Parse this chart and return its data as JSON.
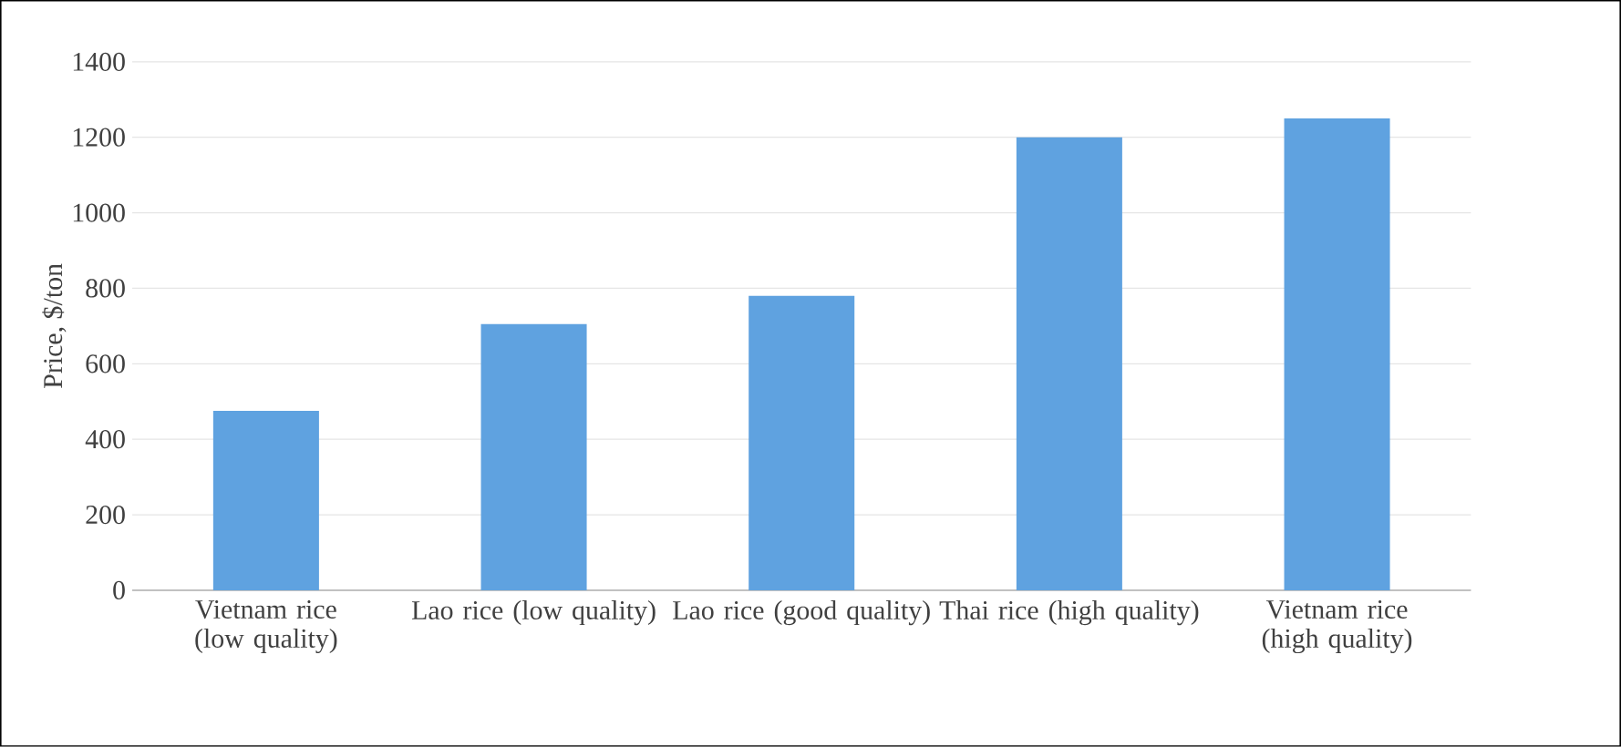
{
  "chart_data": {
    "type": "bar",
    "ylabel": "Price, $/ton",
    "categories": [
      "Vietnam rice (low quality)",
      "Lao rice (low quality)",
      "Lao rice (good quality)",
      "Thai rice (high quality)",
      "Vietnam rice (high quality)"
    ],
    "values": [
      475,
      705,
      780,
      1200,
      1250
    ],
    "color": "#5fa2e0",
    "ylim": [
      0,
      1400
    ],
    "yticks": [
      0,
      200,
      400,
      600,
      800,
      1000,
      1200,
      1400
    ],
    "grid": "y"
  }
}
